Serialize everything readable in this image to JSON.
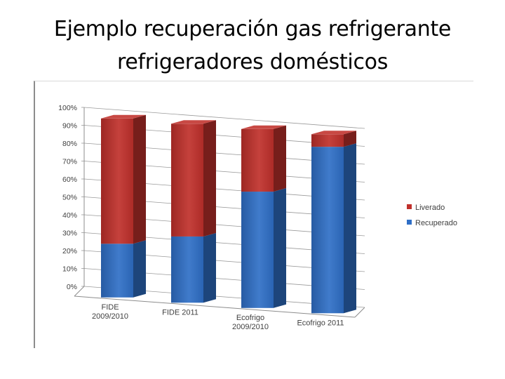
{
  "slide": {
    "title_line1": "Ejemplo recuperación gas refrigerante",
    "title_line2": "refrigeradores domésticos"
  },
  "chart_data": {
    "type": "bar",
    "stacked": true,
    "three_d": true,
    "categories": [
      [
        "FIDE",
        "2009/2010"
      ],
      [
        "FIDE 2011"
      ],
      [
        "Ecofrigo",
        "2009/2010"
      ],
      [
        "Ecofrigo 2011"
      ]
    ],
    "series": [
      {
        "name": "Recuperado",
        "color": "#2f6fc7",
        "values": [
          30,
          37,
          65,
          93
        ]
      },
      {
        "name": "Liverado",
        "color": "#c0302b",
        "values": [
          70,
          63,
          35,
          7
        ]
      }
    ],
    "y_ticks": [
      "0%",
      "10%",
      "20%",
      "30%",
      "40%",
      "50%",
      "60%",
      "70%",
      "80%",
      "90%",
      "100%"
    ],
    "ylim": [
      0,
      100
    ],
    "grid": true,
    "legend_position": "right",
    "legend": [
      "Liverado",
      "Recuperado"
    ]
  }
}
